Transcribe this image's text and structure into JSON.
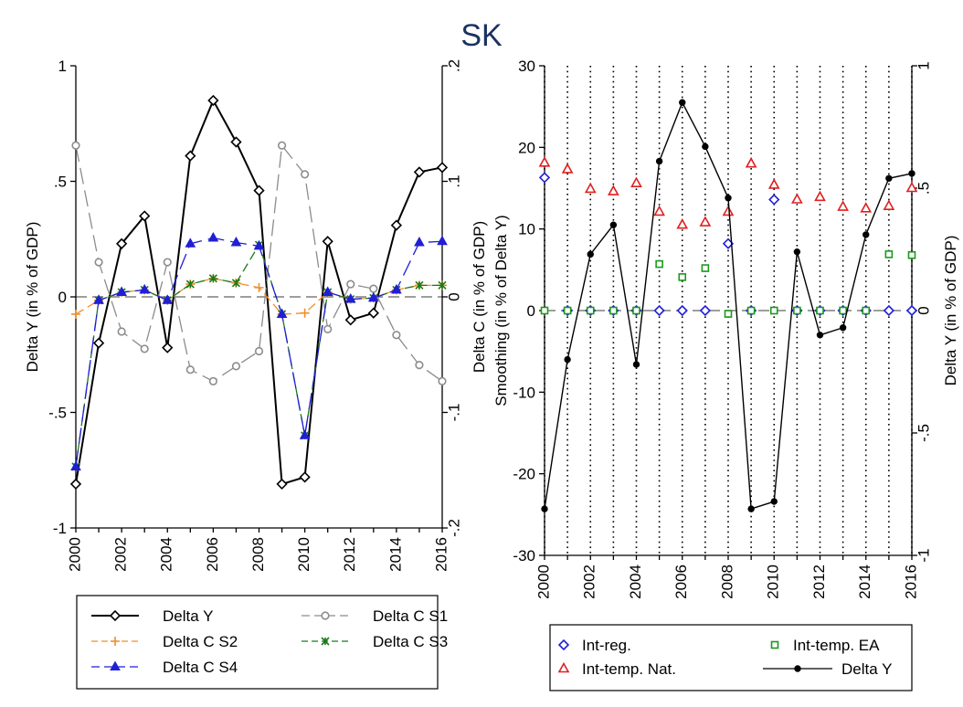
{
  "title": "SK",
  "colors": {
    "delta_y": "#000000",
    "delta_c_s1": "#8c8c8c",
    "delta_c_s2": "#f28e2b",
    "delta_c_s3": "#1a7a1a",
    "delta_c_s4": "#1f1fd6",
    "int_reg": "#1f1fd6",
    "int_temp_ea": "#1a9a1a",
    "int_temp_nat": "#e02020",
    "zero_line": "#7f7f7f",
    "axis": "#000000"
  },
  "chart_data": [
    {
      "type": "line",
      "x": [
        2000,
        2001,
        2002,
        2003,
        2004,
        2005,
        2006,
        2007,
        2008,
        2009,
        2010,
        2011,
        2012,
        2013,
        2014,
        2015,
        2016
      ],
      "xticks": [
        "2000",
        "2002",
        "2004",
        "2006",
        "2008",
        "2010",
        "2012",
        "2014",
        "2016"
      ],
      "xlim": [
        2000,
        2016
      ],
      "ylabel_left": "Delta Y (in % of GDP)",
      "ylim_left": [
        -1,
        1
      ],
      "yticks_left": [
        "1",
        ".5",
        "0",
        "-.5",
        "-1"
      ],
      "ylabel_right": "Delta C (in % of GDP)",
      "ylim_right": [
        -0.2,
        0.2
      ],
      "yticks_right": [
        ".2",
        ".1",
        "0",
        "-.1",
        "-.2"
      ],
      "series": [
        {
          "name": "Delta Y",
          "axis": "left",
          "marker": "diamond",
          "dash": "solid",
          "values": [
            -0.81,
            -0.2,
            0.23,
            0.35,
            -0.22,
            0.61,
            0.85,
            0.67,
            0.46,
            -0.81,
            -0.78,
            0.24,
            -0.1,
            -0.07,
            0.31,
            0.54,
            0.56
          ]
        },
        {
          "name": "Delta C S1",
          "axis": "right",
          "marker": "circle",
          "dash": "longdash",
          "values": [
            0.131,
            0.03,
            -0.03,
            -0.045,
            0.03,
            -0.063,
            -0.073,
            -0.06,
            -0.047,
            0.131,
            0.106,
            -0.028,
            0.011,
            0.007,
            -0.033,
            -0.059,
            -0.073
          ]
        },
        {
          "name": "Delta C S2",
          "axis": "right",
          "marker": "plus",
          "dash": "dash",
          "values": [
            -0.015,
            -0.003,
            0.004,
            0.006,
            -0.003,
            0.011,
            0.016,
            0.012,
            0.008,
            -0.015,
            -0.014,
            0.004,
            -0.002,
            -0.001,
            0.006,
            0.01,
            0.01
          ]
        },
        {
          "name": "Delta C S3",
          "axis": "right",
          "marker": "x",
          "dash": "dash",
          "values": [
            -0.147,
            -0.003,
            0.004,
            0.006,
            -0.003,
            0.011,
            0.016,
            0.012,
            0.045,
            -0.015,
            -0.12,
            0.004,
            -0.002,
            -0.001,
            0.006,
            0.01,
            0.01
          ]
        },
        {
          "name": "Delta C S4",
          "axis": "right",
          "marker": "triangle",
          "dash": "longdash",
          "values": [
            -0.147,
            -0.003,
            0.004,
            0.006,
            -0.003,
            0.046,
            0.051,
            0.047,
            0.044,
            -0.015,
            -0.12,
            0.004,
            -0.002,
            -0.001,
            0.006,
            0.047,
            0.048
          ]
        }
      ],
      "legend": {
        "placement": "bottom",
        "entries": [
          "Delta Y",
          "Delta C S1",
          "Delta C S2",
          "Delta C S3",
          "Delta C S4"
        ]
      }
    },
    {
      "type": "scatter",
      "x": [
        2000,
        2001,
        2002,
        2003,
        2004,
        2005,
        2006,
        2007,
        2008,
        2009,
        2010,
        2011,
        2012,
        2013,
        2014,
        2015,
        2016
      ],
      "xticks": [
        "2000",
        "2002",
        "2004",
        "2006",
        "2008",
        "2010",
        "2012",
        "2014",
        "2016"
      ],
      "xlim": [
        2000,
        2016
      ],
      "ylabel_left": "Smoothing (in % of Delta Y)",
      "ylim_left": [
        -30,
        30
      ],
      "yticks_left": [
        "30",
        "20",
        "10",
        "0",
        "-10",
        "-20",
        "-30"
      ],
      "ylabel_right": "Delta Y (in % of GDP)",
      "ylim_right": [
        -1,
        1
      ],
      "yticks_right": [
        "1",
        ".5",
        "0",
        "-.5",
        "-1"
      ],
      "grid": "vertical dotted lines at each year",
      "series": [
        {
          "name": "Int-reg.",
          "axis": "left",
          "marker": "diamond-hollow",
          "values": [
            16.3,
            0,
            0,
            0,
            0,
            0,
            0,
            0,
            8.2,
            0,
            13.6,
            0,
            0,
            0,
            0,
            0,
            0
          ]
        },
        {
          "name": "Int-temp. EA",
          "axis": "left",
          "marker": "square-hollow",
          "values": [
            0,
            0,
            0,
            0,
            0,
            5.7,
            4.1,
            5.2,
            -0.4,
            0,
            0,
            0,
            0,
            0,
            0,
            6.9,
            6.8
          ]
        },
        {
          "name": "Int-temp. Nat.",
          "axis": "left",
          "marker": "triangle-hollow",
          "values": [
            18.1,
            17.3,
            14.9,
            14.6,
            15.6,
            12.1,
            10.5,
            10.8,
            12.1,
            18.0,
            15.4,
            13.6,
            13.9,
            12.7,
            12.5,
            12.8,
            15.0
          ]
        },
        {
          "name": "Delta Y",
          "axis": "right",
          "marker": "dot",
          "dash": "solid",
          "values": [
            -0.81,
            -0.2,
            0.23,
            0.35,
            -0.22,
            0.61,
            0.85,
            0.67,
            0.46,
            -0.81,
            -0.78,
            0.24,
            -0.1,
            -0.07,
            0.31,
            0.54,
            0.56
          ]
        }
      ],
      "legend": {
        "placement": "bottom",
        "entries": [
          "Int-reg.",
          "Int-temp. EA",
          "Int-temp. Nat.",
          "Delta Y"
        ]
      }
    }
  ]
}
